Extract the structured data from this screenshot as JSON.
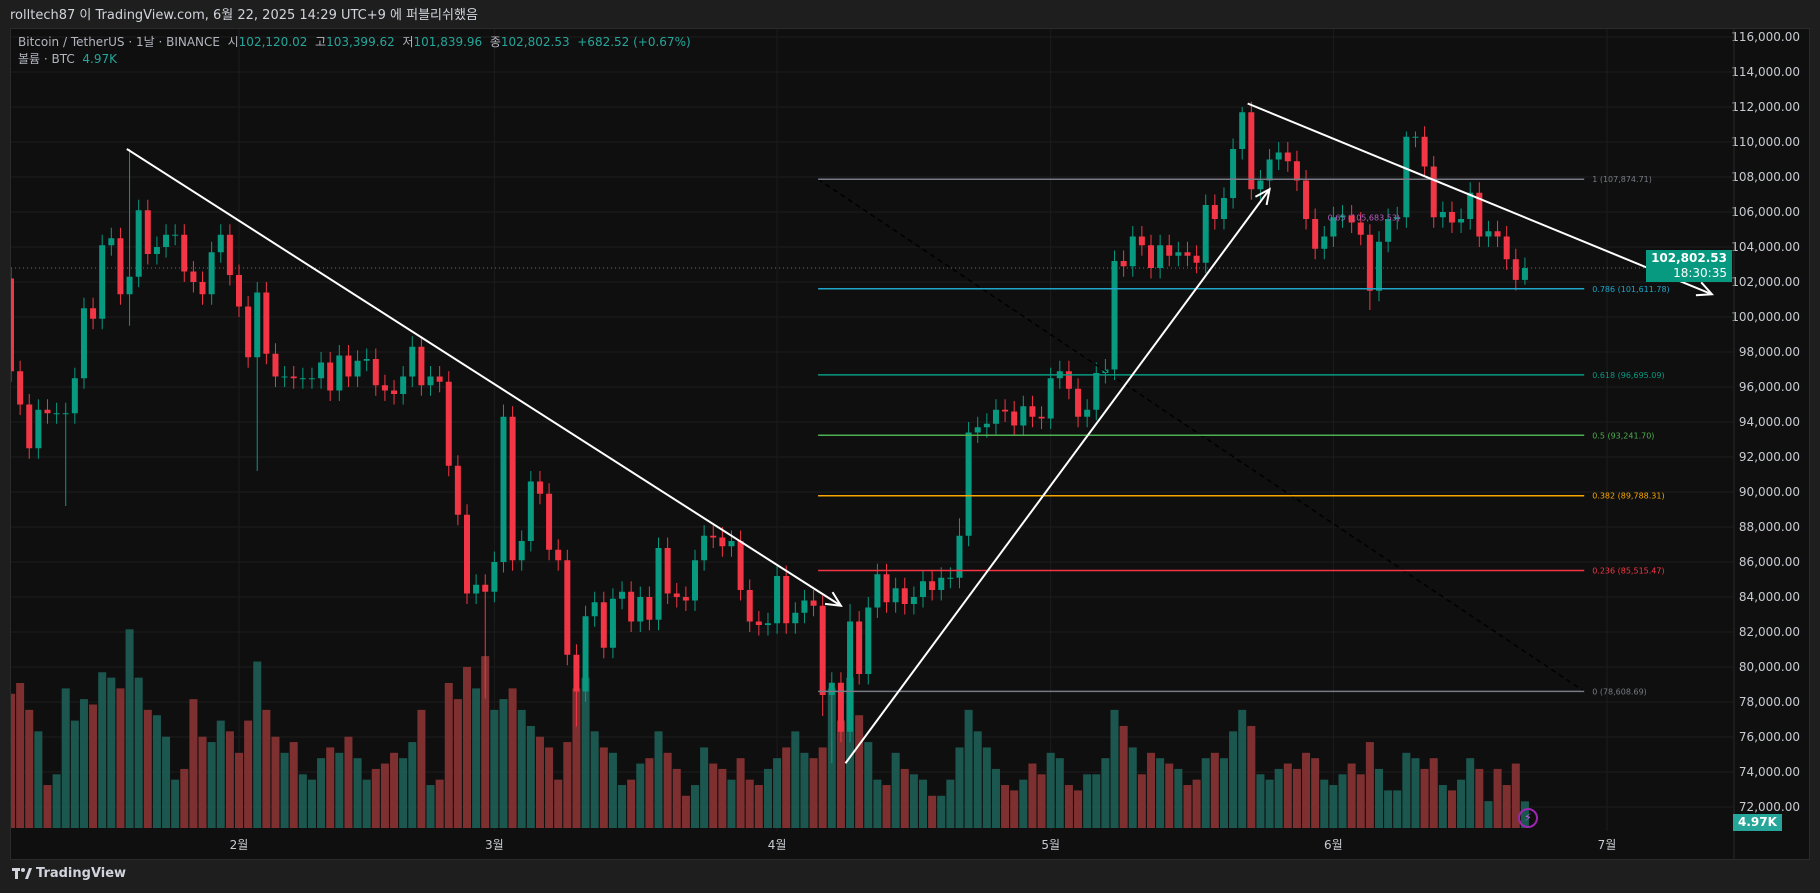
{
  "publish_line": "rolltech87 이 TradingView.com, 6월 22, 2025 14:29 UTC+9 에 퍼블리쉬했음",
  "legend": {
    "symbol": "Bitcoin / TetherUS · 1날 · BINANCE",
    "open_label": "시",
    "open": "102,120.02",
    "high_label": "고",
    "high": "103,399.62",
    "low_label": "저",
    "low": "101,839.96",
    "close_label": "종",
    "close": "102,802.53",
    "change": "+682.52 (+0.67%)",
    "volume_label": "볼륨 · BTC",
    "volume": "4.97K"
  },
  "last_price_badge": {
    "price": "102,802.53",
    "countdown": "18:30:35"
  },
  "volume_badge": "4.97K",
  "brand": "TradingView",
  "colors": {
    "up": "#089981",
    "down": "#f23645",
    "vol_up": "#1e5f57",
    "vol_down": "#8b3434",
    "bg": "#0f0f0f"
  },
  "chart_data": {
    "type": "candlestick",
    "title": "Bitcoin / TetherUS · 1D · BINANCE",
    "start_date": "2025-01-07",
    "first_open": 102.2,
    "price_unit": "thousand USDT",
    "y_ticks": [
      "72,000.00",
      "74,000.00",
      "76,000.00",
      "78,000.00",
      "80,000.00",
      "82,000.00",
      "84,000.00",
      "86,000.00",
      "88,000.00",
      "90,000.00",
      "92,000.00",
      "94,000.00",
      "96,000.00",
      "98,000.00",
      "100,000.00",
      "102,000.00",
      "104,000.00",
      "106,000.00",
      "108,000.00",
      "110,000.00",
      "112,000.00",
      "114,000.00",
      "116,000.00"
    ],
    "ylim": [
      72000,
      116000
    ],
    "x_ticks": [
      {
        "label": "2월",
        "index": 25
      },
      {
        "label": "3월",
        "index": 53
      },
      {
        "label": "4월",
        "index": 84
      },
      {
        "label": "5월",
        "index": 114
      },
      {
        "label": "6월",
        "index": 145
      },
      {
        "label": "7월",
        "index": 175
      }
    ],
    "closes": [
      96.9,
      95.0,
      92.5,
      94.7,
      94.5,
      94.5,
      94.5,
      96.5,
      100.5,
      99.9,
      104.1,
      104.5,
      101.3,
      102.3,
      106.1,
      103.6,
      104.0,
      104.7,
      104.7,
      102.6,
      102.0,
      101.3,
      103.7,
      104.7,
      102.4,
      100.6,
      97.7,
      101.4,
      97.9,
      96.6,
      96.6,
      96.5,
      96.5,
      96.5,
      97.4,
      95.8,
      97.8,
      96.6,
      97.5,
      97.6,
      96.1,
      95.8,
      95.6,
      96.6,
      98.3,
      96.1,
      96.6,
      96.3,
      91.5,
      88.7,
      84.2,
      84.7,
      84.3,
      86.0,
      94.3,
      86.1,
      87.2,
      90.6,
      89.9,
      86.7,
      86.1,
      80.7,
      78.6,
      82.9,
      83.7,
      81.1,
      83.9,
      84.3,
      82.6,
      84.0,
      82.7,
      86.8,
      84.2,
      84.0,
      83.8,
      86.1,
      87.5,
      87.4,
      86.9,
      87.2,
      84.4,
      82.6,
      82.4,
      82.5,
      85.2,
      82.5,
      83.1,
      83.8,
      83.5,
      78.4,
      79.1,
      76.3,
      82.6,
      79.6,
      83.4,
      85.3,
      83.7,
      84.5,
      83.6,
      84.0,
      84.9,
      84.4,
      85.1,
      85.1,
      87.5,
      93.4,
      93.7,
      93.9,
      94.7,
      94.6,
      93.8,
      94.9,
      94.3,
      94.2,
      96.5,
      96.9,
      95.9,
      94.3,
      94.7,
      96.8,
      97.0,
      103.2,
      102.9,
      104.6,
      104.1,
      102.8,
      104.1,
      103.5,
      103.7,
      103.5,
      103.1,
      106.4,
      105.6,
      106.8,
      109.6,
      111.7,
      107.3,
      107.8,
      109.0,
      109.4,
      108.9,
      107.8,
      105.6,
      103.9,
      104.6,
      105.7,
      105.8,
      105.4,
      104.7,
      101.5,
      104.3,
      105.6,
      105.7,
      110.3,
      110.3,
      108.6,
      105.7,
      106.0,
      105.4,
      105.6,
      107.1,
      104.6,
      104.9,
      104.6,
      103.3,
      102.12,
      102.8
    ],
    "wick_extremes": {
      "6": [
        null,
        89.2
      ],
      "13": [
        109.6,
        99.5
      ],
      "27": [
        null,
        91.2
      ],
      "52": [
        null,
        78.2
      ],
      "54": [
        95.0,
        null
      ],
      "62": [
        null,
        76.6
      ],
      "89": [
        null,
        77.2
      ],
      "90": [
        null,
        74.5
      ],
      "92": [
        83.6,
        null
      ],
      "104": [
        88.5,
        null
      ],
      "135": [
        112.0,
        null
      ],
      "149": [
        null,
        100.4
      ],
      "153": [
        110.6,
        null
      ],
      "154": [
        110.6,
        null
      ],
      "166": [
        103.4,
        101.84
      ]
    },
    "volumes_k": [
      25,
      27,
      22,
      18,
      8,
      10,
      26,
      20,
      24,
      23,
      29,
      28,
      26,
      37,
      28,
      22,
      21,
      17,
      9,
      11,
      24,
      17,
      16,
      20,
      18,
      14,
      20,
      31,
      22,
      17,
      14,
      16,
      10,
      9,
      13,
      15,
      14,
      17,
      13,
      9,
      11,
      12,
      14,
      13,
      16,
      22,
      8,
      9,
      27,
      24,
      30,
      26,
      32,
      22,
      24,
      26,
      22,
      19,
      17,
      15,
      9,
      16,
      26,
      28,
      18,
      15,
      14,
      8,
      9,
      12,
      13,
      18,
      14,
      11,
      6,
      8,
      15,
      12,
      11,
      9,
      13,
      9,
      8,
      11,
      13,
      15,
      18,
      14,
      13,
      15,
      26,
      20,
      28,
      21,
      16,
      9,
      8,
      14,
      11,
      10,
      9,
      6,
      6,
      9,
      15,
      22,
      18,
      15,
      11,
      8,
      7,
      9,
      12,
      10,
      14,
      13,
      8,
      7,
      10,
      10,
      13,
      22,
      19,
      15,
      10,
      14,
      13,
      12,
      11,
      8,
      9,
      13,
      14,
      13,
      18,
      22,
      19,
      10,
      9,
      11,
      12,
      11,
      14,
      13,
      9,
      8,
      10,
      12,
      10,
      16,
      11,
      7,
      7,
      14,
      13,
      11,
      13,
      8,
      7,
      9,
      13,
      11,
      5,
      11,
      8,
      12,
      4.97
    ],
    "last_price": 102.80253,
    "trendlines": [
      {
        "name": "downtrend-jan-apr",
        "from": {
          "index": 12.7,
          "price": 109.6
        },
        "to": {
          "index": 91,
          "price": 83.5
        },
        "arrow": true
      },
      {
        "name": "uptrend-apr-may",
        "from": {
          "index": 91.5,
          "price": 74.5
        },
        "to": {
          "index": 138,
          "price": 107.3
        },
        "arrow": true
      },
      {
        "name": "downtrend-may-jun",
        "from": {
          "index": 135.6,
          "price": 112.2
        },
        "to": {
          "index": 186.5,
          "price": 101.3
        },
        "arrow": true
      }
    ],
    "fib_retracement": {
      "from_index": 88.5,
      "to_index": 172.5,
      "levels": [
        {
          "label": "1 (107,874.71)",
          "price": 107.87471,
          "color": "#787b86"
        },
        {
          "label": "0.786 (101,611.78)",
          "price": 101.61178,
          "color": "#1ea5c8"
        },
        {
          "label": "0.618 (96,695.09)",
          "price": 96.69509,
          "color": "#089981"
        },
        {
          "label": "0.5 (93,241.70)",
          "price": 93.2417,
          "color": "#4caf50"
        },
        {
          "label": "0.382 (89,788.31)",
          "price": 89.78831,
          "color": "#f7a600"
        },
        {
          "label": "0.236 (85,515.47)",
          "price": 85.51547,
          "color": "#f23645"
        },
        {
          "label": "0 (78,608.69)",
          "price": 78.60869,
          "color": "#787b86"
        }
      ],
      "extra_label": {
        "label": "0.65 (105,683.53)",
        "color": "#b45fc2",
        "index": 147,
        "price": 105.7
      }
    }
  }
}
